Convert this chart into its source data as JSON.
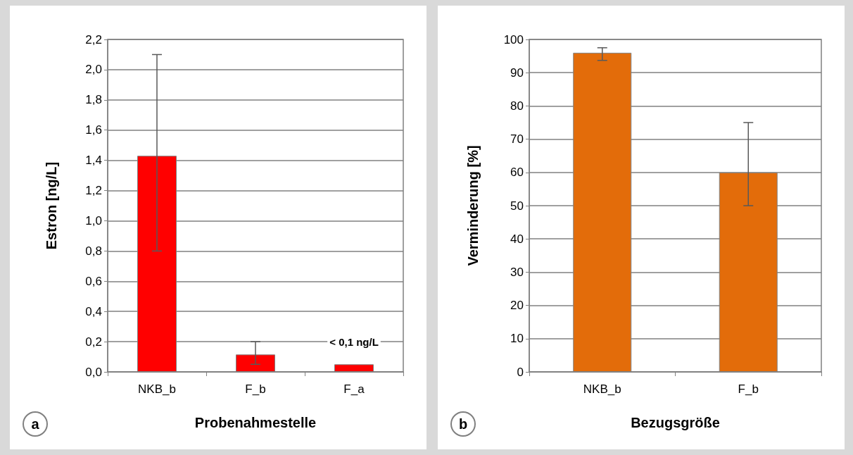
{
  "chart_data": [
    {
      "type": "bar",
      "xlabel": "Probenahmestelle",
      "ylabel": "Estron [ng/L]",
      "categories": [
        "NKB_b",
        "F_b",
        "F_a"
      ],
      "values": [
        1.43,
        0.115,
        0.05
      ],
      "color": "#ff0000",
      "errors": [
        [
          0.8,
          2.1
        ],
        [
          0.05,
          0.2
        ],
        null
      ],
      "ylim": [
        0,
        2.2
      ],
      "yticks": [
        {
          "value": 0,
          "label": "0,0"
        },
        {
          "value": 0.2,
          "label": "0,2"
        },
        {
          "value": 0.4,
          "label": "0,4"
        },
        {
          "value": 0.6,
          "label": "0,6"
        },
        {
          "value": 0.8,
          "label": "0,8"
        },
        {
          "value": 1.0,
          "label": "1,0"
        },
        {
          "value": 1.2,
          "label": "1,2"
        },
        {
          "value": 1.4,
          "label": "1,4"
        },
        {
          "value": 1.6,
          "label": "1,6"
        },
        {
          "value": 1.8,
          "label": "1,8"
        },
        {
          "value": 2.0,
          "label": "2,0"
        },
        {
          "value": 2.2,
          "label": "2,2"
        }
      ],
      "grid": "y",
      "annotations": [
        {
          "text": "< 0,1 ng/L",
          "x": "F_a",
          "y": 0.05
        },
        "a"
      ]
    },
    {
      "type": "bar",
      "xlabel": "Bezugsgröße",
      "ylabel": "Verminderung [%]",
      "categories": [
        "NKB_b",
        "F_b"
      ],
      "values": [
        96,
        60
      ],
      "color": "#e36c0a",
      "errors": [
        [
          93.7,
          97.5
        ],
        [
          50,
          75
        ]
      ],
      "ylim": [
        0,
        100
      ],
      "yticks": [
        0,
        10,
        20,
        30,
        40,
        50,
        60,
        70,
        80,
        90,
        100
      ],
      "grid": "y",
      "annotations": [
        "b"
      ]
    }
  ]
}
